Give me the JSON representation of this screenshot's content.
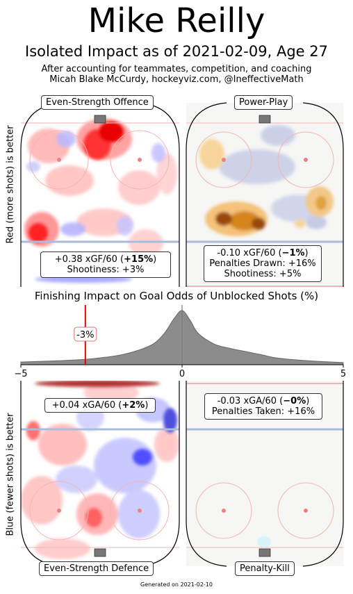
{
  "header": {
    "title": "Mike Reilly",
    "subtitle": "Isolated Impact as of 2021-02-09, Age 27",
    "note_line1": "After accounting for teammates, competition, and coaching",
    "note_line2": "Micah Blake McCurdy, hockeyviz.com, @IneffectiveMath"
  },
  "panels": {
    "ev_offence": {
      "label": "Even-Strength Offence",
      "stat_line1_pre": "+0.38 xGF/60 (",
      "stat_line1_bold": "+15%",
      "stat_line1_post": ")",
      "stat_line2": "Shootiness: +3%"
    },
    "powerplay": {
      "label": "Power-Play",
      "stat_line1_pre": "-0.10 xGF/60 (",
      "stat_line1_bold": "−1%",
      "stat_line1_post": ")",
      "stat_line2": "Penalties Drawn: +16%",
      "stat_line3": "Shootiness: +5%"
    },
    "ev_defence": {
      "label": "Even-Strength Defence",
      "stat_line1_pre": "+0.04 xGA/60 (",
      "stat_line1_bold": "+2%",
      "stat_line1_post": ")"
    },
    "penalty_kill": {
      "label": "Penalty-Kill",
      "stat_line1_pre": "-0.03 xGA/60 (",
      "stat_line1_bold": "−0%",
      "stat_line1_post": ")",
      "stat_line2": "Penalties Taken: +16%"
    }
  },
  "axis_labels": {
    "top_left_ylabel": "Red (more shots) is better",
    "bottom_left_ylabel": "Blue (fewer shots) is better"
  },
  "chart_data": {
    "type": "area",
    "title": "Finishing Impact on Goal Odds of Unblocked Shots (%)",
    "xlim": [
      -5,
      5
    ],
    "x_ticks": [
      "−5",
      "0",
      "5"
    ],
    "distribution": {
      "x": [
        -5,
        -4,
        -3,
        -2.5,
        -2,
        -1.5,
        -1,
        -0.75,
        -0.5,
        -0.25,
        0,
        0.25,
        0.5,
        1,
        1.5,
        2,
        2.5,
        3,
        4,
        5
      ],
      "density": [
        0.05,
        0.07,
        0.1,
        0.13,
        0.17,
        0.24,
        0.35,
        0.45,
        0.62,
        0.85,
        1.0,
        0.82,
        0.58,
        0.38,
        0.3,
        0.24,
        0.18,
        0.12,
        0.07,
        0.04
      ]
    },
    "reference_line": 0,
    "player_value": -3,
    "player_label": "-3%",
    "colors": {
      "fill": "#8c8c8c",
      "edge": "#666666",
      "marker": "#e00000"
    }
  },
  "footer": {
    "generated": "Generated on 2021-02-10"
  }
}
